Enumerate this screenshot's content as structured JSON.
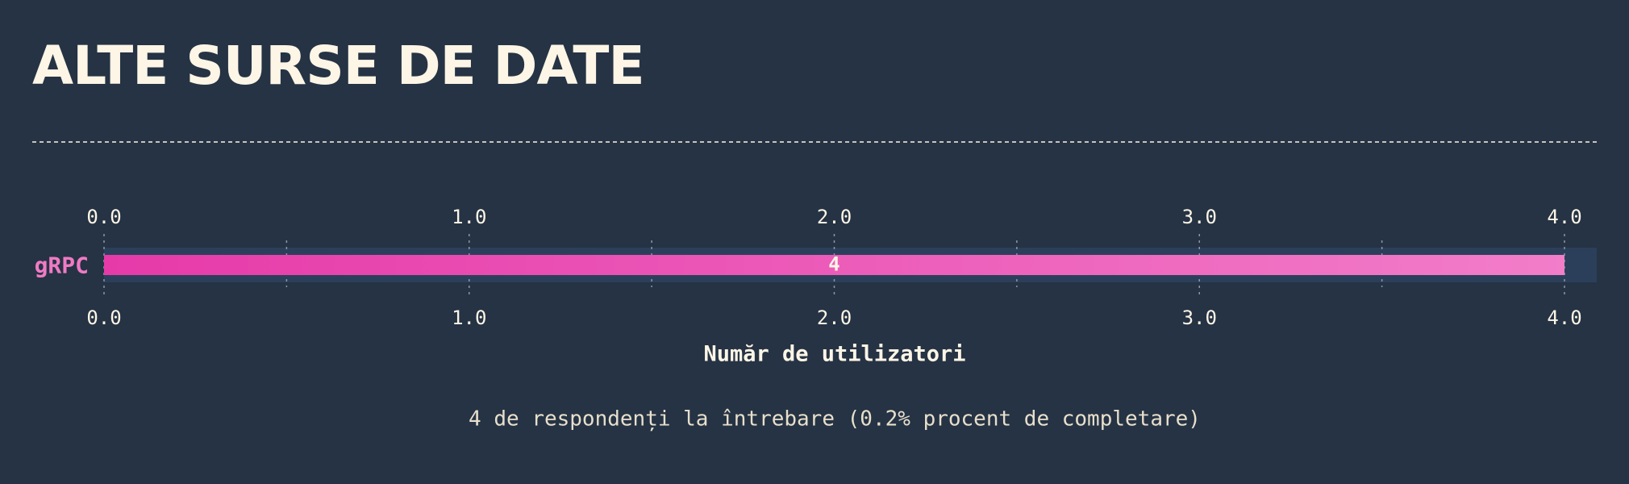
{
  "chart_data": {
    "type": "hbar",
    "title": "ALTE SURSE DE DATE",
    "categories": [
      "gRPC"
    ],
    "values": [
      4
    ],
    "color": "#e63aa9",
    "xlim": [
      0,
      4
    ],
    "xticks": [
      {
        "value": 0,
        "label": "0.0"
      },
      {
        "value": 1,
        "label": "1.0"
      },
      {
        "value": 2,
        "label": "2.0"
      },
      {
        "value": 3,
        "label": "3.0"
      },
      {
        "value": 4,
        "label": "4.0"
      }
    ],
    "xminorticks": [
      0.5,
      1.5,
      2.5,
      3.5
    ],
    "x_label": "Număr de utilizatori",
    "note": "4 de respondenți la întrebare (0.2% procent de completare)",
    "grid": true
  }
}
